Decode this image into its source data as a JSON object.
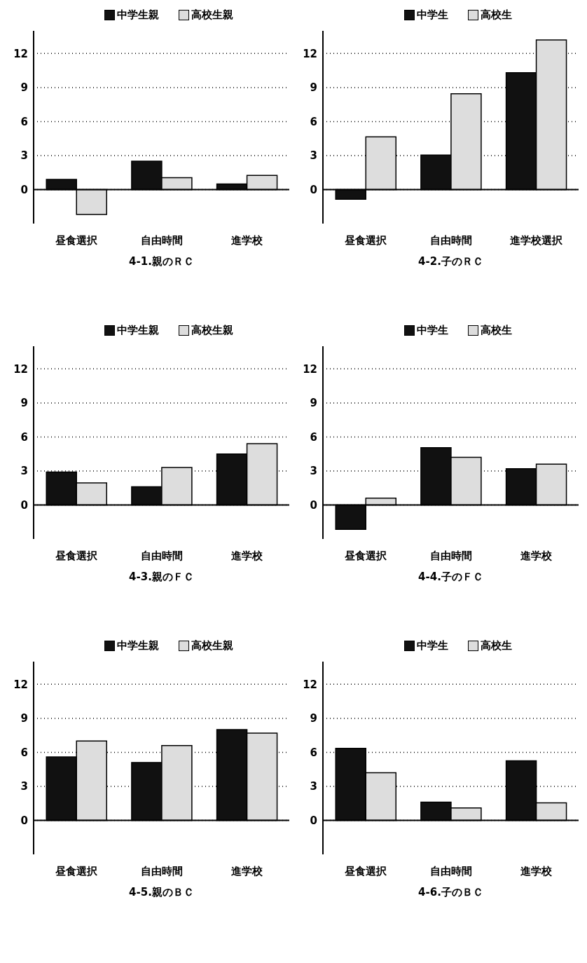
{
  "chart_data": [
    {
      "type": "bar",
      "title": "4-1.親のＲＣ",
      "categories": [
        "昼食選択",
        "自由時間",
        "進学校"
      ],
      "series": [
        {
          "name": "中学生親",
          "color": "#111111",
          "values": [
            0.9,
            2.5,
            0.5
          ]
        },
        {
          "name": "高校生親",
          "color": "#dddddd",
          "values": [
            -2.2,
            1.05,
            1.25
          ]
        }
      ],
      "ylim": [
        -3,
        14
      ],
      "yticks": [
        0,
        3,
        6,
        9,
        12
      ],
      "grid": "y",
      "legend": "top",
      "ref_lines": [
        {
          "axis": "y",
          "value": 0,
          "color": "#000000"
        }
      ]
    },
    {
      "type": "bar",
      "title": "4-2.子のＲＣ",
      "categories": [
        "昼食選択",
        "自由時間",
        "進学校選択"
      ],
      "series": [
        {
          "name": "中学生",
          "color": "#111111",
          "values": [
            -0.85,
            3.05,
            10.3
          ]
        },
        {
          "name": "高校生",
          "color": "#dddddd",
          "values": [
            4.65,
            8.45,
            13.2
          ]
        }
      ],
      "ylim": [
        -3,
        14
      ],
      "yticks": [
        0,
        3,
        6,
        9,
        12
      ],
      "grid": "y",
      "legend": "top",
      "ref_lines": [
        {
          "axis": "y",
          "value": 0,
          "color": "#000000"
        }
      ]
    },
    {
      "type": "bar",
      "title": "4-3.親のＦＣ",
      "categories": [
        "昼食選択",
        "自由時間",
        "進学校"
      ],
      "series": [
        {
          "name": "中学生親",
          "color": "#111111",
          "values": [
            2.9,
            1.6,
            4.5
          ]
        },
        {
          "name": "高校生親",
          "color": "#dddddd",
          "values": [
            1.95,
            3.3,
            5.4
          ]
        }
      ],
      "ylim": [
        -3,
        14
      ],
      "yticks": [
        0,
        3,
        6,
        9,
        12
      ],
      "grid": "y",
      "legend": "top",
      "ref_lines": [
        {
          "axis": "y",
          "value": 0,
          "color": "#000000"
        }
      ]
    },
    {
      "type": "bar",
      "title": "4-4.子のＦＣ",
      "categories": [
        "昼食選択",
        "自由時間",
        "進学校"
      ],
      "series": [
        {
          "name": "中学生",
          "color": "#111111",
          "values": [
            -2.15,
            5.05,
            3.2
          ]
        },
        {
          "name": "高校生",
          "color": "#dddddd",
          "values": [
            0.6,
            4.2,
            3.6
          ]
        }
      ],
      "ylim": [
        -3,
        14
      ],
      "yticks": [
        0,
        3,
        6,
        9,
        12
      ],
      "grid": "y",
      "legend": "top",
      "ref_lines": [
        {
          "axis": "y",
          "value": 0,
          "color": "#000000"
        }
      ]
    },
    {
      "type": "bar",
      "title": "4-5.親のＢＣ",
      "categories": [
        "昼食選択",
        "自由時間",
        "進学校"
      ],
      "series": [
        {
          "name": "中学生親",
          "color": "#111111",
          "values": [
            5.6,
            5.1,
            8.0
          ]
        },
        {
          "name": "高校生親",
          "color": "#dddddd",
          "values": [
            7.0,
            6.6,
            7.7
          ]
        }
      ],
      "ylim": [
        -3,
        14
      ],
      "yticks": [
        0,
        3,
        6,
        9,
        12
      ],
      "grid": "y",
      "legend": "top",
      "ref_lines": [
        {
          "axis": "y",
          "value": 0,
          "color": "#000000"
        }
      ]
    },
    {
      "type": "bar",
      "title": "4-6.子のＢＣ",
      "categories": [
        "昼食選択",
        "自由時間",
        "進学校"
      ],
      "series": [
        {
          "name": "中学生",
          "color": "#111111",
          "values": [
            6.35,
            1.6,
            5.25
          ]
        },
        {
          "name": "高校生",
          "color": "#dddddd",
          "values": [
            4.2,
            1.1,
            1.55
          ]
        }
      ],
      "ylim": [
        -3,
        14
      ],
      "yticks": [
        0,
        3,
        6,
        9,
        12
      ],
      "grid": "y",
      "legend": "top",
      "ref_lines": [
        {
          "axis": "y",
          "value": 0,
          "color": "#000000"
        }
      ]
    }
  ]
}
